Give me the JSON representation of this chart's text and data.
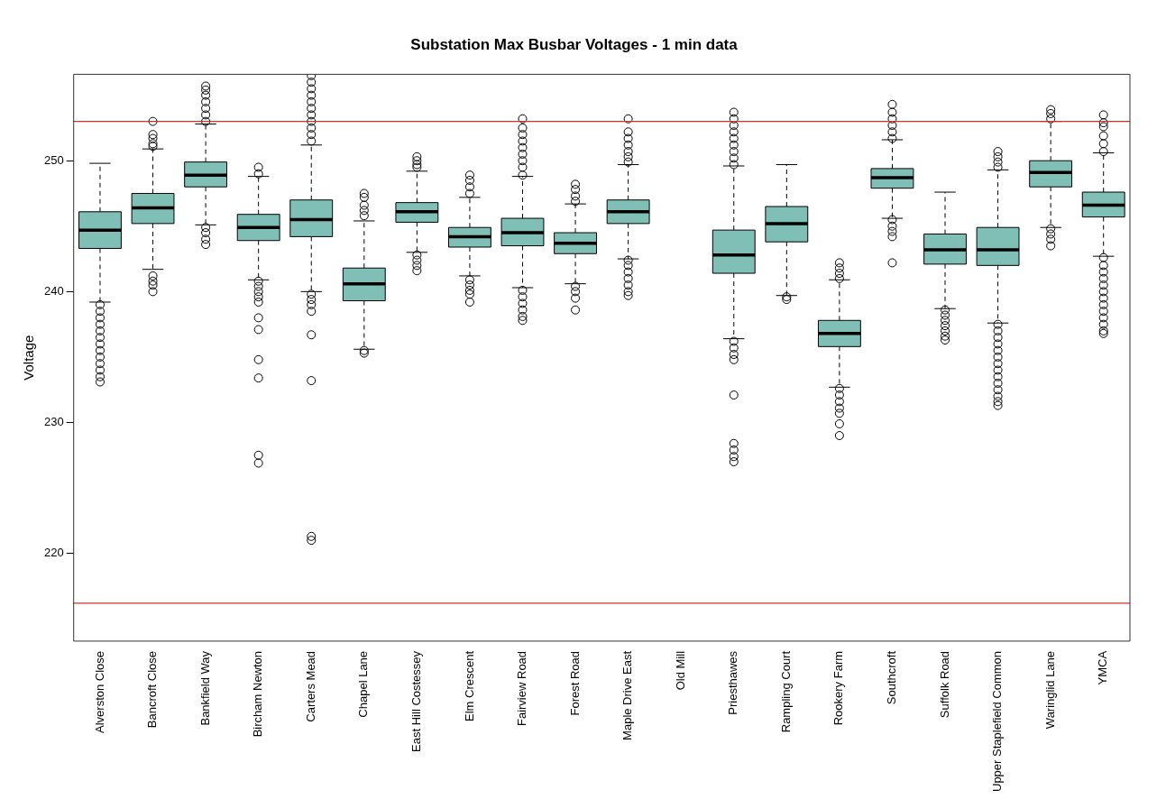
{
  "chart_data": {
    "type": "box",
    "title": "Substation Max Busbar Voltages - 1 min data",
    "ylabel": "Voltage",
    "categories": [
      "Alverston Close",
      "Bancroft Close",
      "Bankfield Way",
      "Bircham Newton",
      "Carters Mead",
      "Chapel Lane",
      "East Hill Costessey",
      "Elm Crescent",
      "Fairview Road",
      "Forest Road",
      "Maple Drive East",
      "Old Mill",
      "Priesthawes",
      "Rampling Court",
      "Rookery Farm",
      "Southcroft",
      "Suffolk Road",
      "Upper Staplefield Common",
      "Waringlid Lane",
      "YMCA"
    ],
    "color": "#7fbfb6",
    "boxes": [
      {
        "low": 239.2,
        "q1": 243.3,
        "median": 244.7,
        "q3": 246.1,
        "high": 249.8,
        "outliers": [
          239.0,
          238.5,
          238.0,
          237.5,
          237.0,
          236.5,
          236.0,
          235.5,
          235.0,
          234.5,
          234.0,
          233.5,
          233.1
        ]
      },
      {
        "low": 241.7,
        "q1": 245.2,
        "median": 246.4,
        "q3": 247.5,
        "high": 250.9,
        "outliers": [
          253.0,
          252.0,
          251.7,
          251.3,
          251.1,
          241.2,
          240.8,
          240.5,
          240.0
        ]
      },
      {
        "low": 245.1,
        "q1": 248.0,
        "median": 248.9,
        "q3": 249.9,
        "high": 252.8,
        "outliers": [
          253.0,
          253.5,
          254.0,
          254.5,
          255.0,
          255.4,
          255.7,
          244.9,
          244.5,
          244.0,
          243.6
        ]
      },
      {
        "low": 240.9,
        "q1": 243.9,
        "median": 244.9,
        "q3": 245.9,
        "high": 248.8,
        "outliers": [
          249.5,
          249.0,
          240.8,
          240.4,
          240.0,
          239.6,
          239.2,
          238.0,
          237.1,
          234.8,
          233.4,
          227.5,
          226.9
        ]
      },
      {
        "low": 240.0,
        "q1": 244.2,
        "median": 245.5,
        "q3": 247.0,
        "high": 251.2,
        "outliers": [
          251.5,
          252.0,
          252.5,
          253.0,
          253.5,
          254.0,
          254.5,
          255.0,
          255.5,
          256.0,
          256.5,
          239.8,
          239.4,
          239.0,
          238.5,
          236.7,
          233.2,
          221.3,
          221.0
        ]
      },
      {
        "low": 235.6,
        "q1": 239.3,
        "median": 240.6,
        "q3": 241.8,
        "high": 245.4,
        "outliers": [
          247.5,
          247.2,
          246.6,
          246.2,
          245.8,
          235.5,
          235.3
        ]
      },
      {
        "low": 243.0,
        "q1": 245.3,
        "median": 246.1,
        "q3": 246.8,
        "high": 249.2,
        "outliers": [
          250.3,
          250.0,
          249.7,
          249.5,
          242.8,
          242.4,
          242.0,
          241.6
        ]
      },
      {
        "low": 241.2,
        "q1": 243.4,
        "median": 244.2,
        "q3": 244.9,
        "high": 247.2,
        "outliers": [
          248.9,
          248.5,
          248.0,
          247.5,
          240.9,
          240.5,
          240.1,
          239.8,
          239.2
        ]
      },
      {
        "low": 240.3,
        "q1": 243.5,
        "median": 244.5,
        "q3": 245.6,
        "high": 248.8,
        "outliers": [
          253.2,
          252.5,
          252.0,
          251.5,
          251.0,
          250.5,
          250.0,
          249.5,
          248.9,
          240.1,
          239.6,
          239.1,
          238.6,
          238.1,
          237.8
        ]
      },
      {
        "low": 240.6,
        "q1": 242.9,
        "median": 243.7,
        "q3": 244.5,
        "high": 246.7,
        "outliers": [
          248.2,
          247.8,
          247.3,
          246.9,
          240.4,
          240.0,
          239.5,
          238.6
        ]
      },
      {
        "low": 242.5,
        "q1": 245.2,
        "median": 246.1,
        "q3": 247.0,
        "high": 249.7,
        "outliers": [
          253.2,
          252.2,
          251.7,
          251.2,
          250.7,
          250.3,
          249.9,
          242.4,
          242.0,
          241.5,
          241.0,
          240.5,
          240.0,
          239.7
        ]
      },
      null,
      {
        "low": 236.4,
        "q1": 241.4,
        "median": 242.8,
        "q3": 244.7,
        "high": 249.6,
        "outliers": [
          253.7,
          253.2,
          252.7,
          252.2,
          251.7,
          251.2,
          250.7,
          250.2,
          249.7,
          236.2,
          235.7,
          235.2,
          234.8,
          232.1,
          228.4,
          227.9,
          227.4,
          227.0
        ]
      },
      {
        "low": 239.7,
        "q1": 243.8,
        "median": 245.2,
        "q3": 246.5,
        "high": 249.7,
        "outliers": [
          239.6,
          239.4
        ]
      },
      {
        "low": 232.7,
        "q1": 235.8,
        "median": 236.8,
        "q3": 237.8,
        "high": 240.9,
        "outliers": [
          242.2,
          241.8,
          241.4,
          241.0,
          232.6,
          232.1,
          231.6,
          231.1,
          230.7,
          229.9,
          229.0
        ]
      },
      {
        "low": 245.6,
        "q1": 247.9,
        "median": 248.7,
        "q3": 249.4,
        "high": 251.6,
        "outliers": [
          254.3,
          253.7,
          253.2,
          252.7,
          252.2,
          251.7,
          245.5,
          245.0,
          244.6,
          244.2,
          242.2
        ]
      },
      {
        "low": 238.7,
        "q1": 242.1,
        "median": 243.2,
        "q3": 244.4,
        "high": 247.6,
        "outliers": [
          238.6,
          238.2,
          237.8,
          237.4,
          237.0,
          236.6,
          236.3
        ]
      },
      {
        "low": 237.6,
        "q1": 242.0,
        "median": 243.2,
        "q3": 244.9,
        "high": 249.3,
        "outliers": [
          250.7,
          250.3,
          249.9,
          249.5,
          237.5,
          237.0,
          236.5,
          236.0,
          235.5,
          235.0,
          234.5,
          234.0,
          233.5,
          233.0,
          232.5,
          232.0,
          231.6,
          231.3
        ]
      },
      {
        "low": 244.9,
        "q1": 248.0,
        "median": 249.1,
        "q3": 250.0,
        "high": 253.0,
        "outliers": [
          253.9,
          253.6,
          253.2,
          244.8,
          244.4,
          244.0,
          243.5
        ]
      },
      {
        "low": 242.7,
        "q1": 245.7,
        "median": 246.6,
        "q3": 247.6,
        "high": 250.6,
        "outliers": [
          253.5,
          252.9,
          252.6,
          251.9,
          251.3,
          250.7,
          242.6,
          242.0,
          241.5,
          241.0,
          240.5,
          240.0,
          239.5,
          239.0,
          238.5,
          238.0,
          237.5,
          237.0,
          236.8
        ]
      }
    ],
    "ylim": [
      213.3,
      256.6
    ],
    "yticks": [
      220,
      230,
      240,
      250
    ],
    "ref_lines": [
      {
        "axis": "y",
        "value": 253,
        "color": "#d03030"
      },
      {
        "axis": "y",
        "value": 216.2,
        "color": "#d03030"
      }
    ],
    "grid": false,
    "legend": false
  }
}
